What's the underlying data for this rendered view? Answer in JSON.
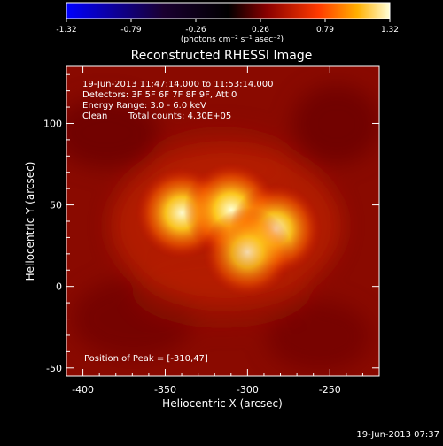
{
  "chart_data": {
    "type": "heatmap",
    "title": "Reconstructed RHESSI Image",
    "xlabel": "Heliocentric X (arcsec)",
    "ylabel": "Heliocentric Y (arcsec)",
    "xlim": [
      -410,
      -220
    ],
    "ylim": [
      -55,
      135
    ],
    "xticks": [
      -400,
      -350,
      -300,
      -250
    ],
    "yticks": [
      -50,
      0,
      50,
      100
    ],
    "colorbar": {
      "colormap": "red-temperature",
      "range": [
        -1.32,
        1.32
      ],
      "ticks": [
        "-1.32",
        "-0.79",
        "-0.26",
        "0.26",
        "0.79",
        "1.32"
      ],
      "units": "(photons cm⁻² s⁻¹ asec⁻²)"
    },
    "sources": [
      {
        "x": -340,
        "y": 45,
        "peak": 1.15
      },
      {
        "x": -310,
        "y": 47,
        "peak": 1.32
      },
      {
        "x": -283,
        "y": 35,
        "peak": 1.12
      },
      {
        "x": -300,
        "y": 21,
        "peak": 0.95
      }
    ],
    "annotations": {
      "time_range": "19-Jun-2013 11:47:14.000 to 11:53:14.000",
      "detectors": "Detectors: 3F 5F 6F 7F 8F 9F, Att 0",
      "energy": "Energy Range: 3.0 - 6.0 keV",
      "clean": "Clean",
      "total_counts": "Total counts: 4.30E+05",
      "peak_position": "Position of Peak = [-310,47]"
    },
    "timestamp": "19-Jun-2013 07:37"
  }
}
